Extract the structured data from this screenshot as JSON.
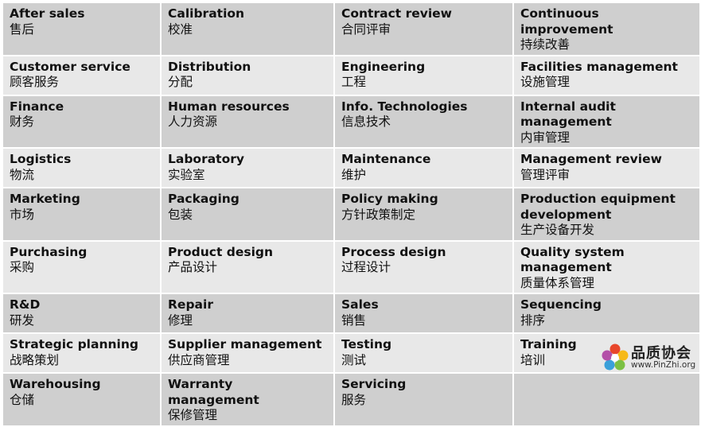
{
  "rows": [
    [
      {
        "en": "After sales",
        "zh": "售后"
      },
      {
        "en": "Calibration",
        "zh": "校准"
      },
      {
        "en": "Contract review",
        "zh": "合同评审"
      },
      {
        "en": "Continuous improvement",
        "zh": "持续改善"
      }
    ],
    [
      {
        "en": "Customer service",
        "zh": "顾客服务"
      },
      {
        "en": "Distribution",
        "zh": "分配"
      },
      {
        "en": "Engineering",
        "zh": "工程"
      },
      {
        "en": "Facilities management",
        "zh": "设施管理"
      }
    ],
    [
      {
        "en": "Finance",
        "zh": "财务"
      },
      {
        "en": "Human resources",
        "zh": "人力资源"
      },
      {
        "en": "Info. Technologies",
        "zh": "信息技术"
      },
      {
        "en": "Internal audit management",
        "zh": "内审管理"
      }
    ],
    [
      {
        "en": "Logistics",
        "zh": "物流"
      },
      {
        "en": "Laboratory",
        "zh": "实验室"
      },
      {
        "en": "Maintenance",
        "zh": "维护"
      },
      {
        "en": "Management review",
        "zh": "管理评审"
      }
    ],
    [
      {
        "en": "Marketing",
        "zh": "市场"
      },
      {
        "en": "Packaging",
        "zh": "包装"
      },
      {
        "en": "Policy making",
        "zh": "方针政策制定"
      },
      {
        "en": "Production equipment development",
        "zh": "生产设备开发"
      }
    ],
    [
      {
        "en": "Purchasing",
        "zh": "采购"
      },
      {
        "en": "Product design",
        "zh": "产品设计"
      },
      {
        "en": "Process design",
        "zh": "过程设计"
      },
      {
        "en": "Quality system management",
        "zh": "质量体系管理"
      }
    ],
    [
      {
        "en": "R&D",
        "zh": "研发"
      },
      {
        "en": "Repair",
        "zh": "修理"
      },
      {
        "en": "Sales",
        "zh": "销售"
      },
      {
        "en": "Sequencing",
        "zh": "排序"
      }
    ],
    [
      {
        "en": "Strategic planning",
        "zh": "战略策划"
      },
      {
        "en": "Supplier management",
        "zh": "供应商管理"
      },
      {
        "en": "Testing",
        "zh": "测试"
      },
      {
        "en": "Training",
        "zh": "培训"
      }
    ],
    [
      {
        "en": "Warehousing",
        "zh": "仓储"
      },
      {
        "en": "Warranty management",
        "zh": "保修管理"
      },
      {
        "en": "Servicing",
        "zh": "服务"
      },
      {
        "en": "",
        "zh": ""
      }
    ]
  ],
  "logo": {
    "name": "品质协会",
    "url": "www.PinZhi.org",
    "icon": "flower-logo-icon"
  },
  "colors": {
    "row_dark": "#cfcfcf",
    "row_light": "#e8e8e8",
    "text": "#111111"
  }
}
